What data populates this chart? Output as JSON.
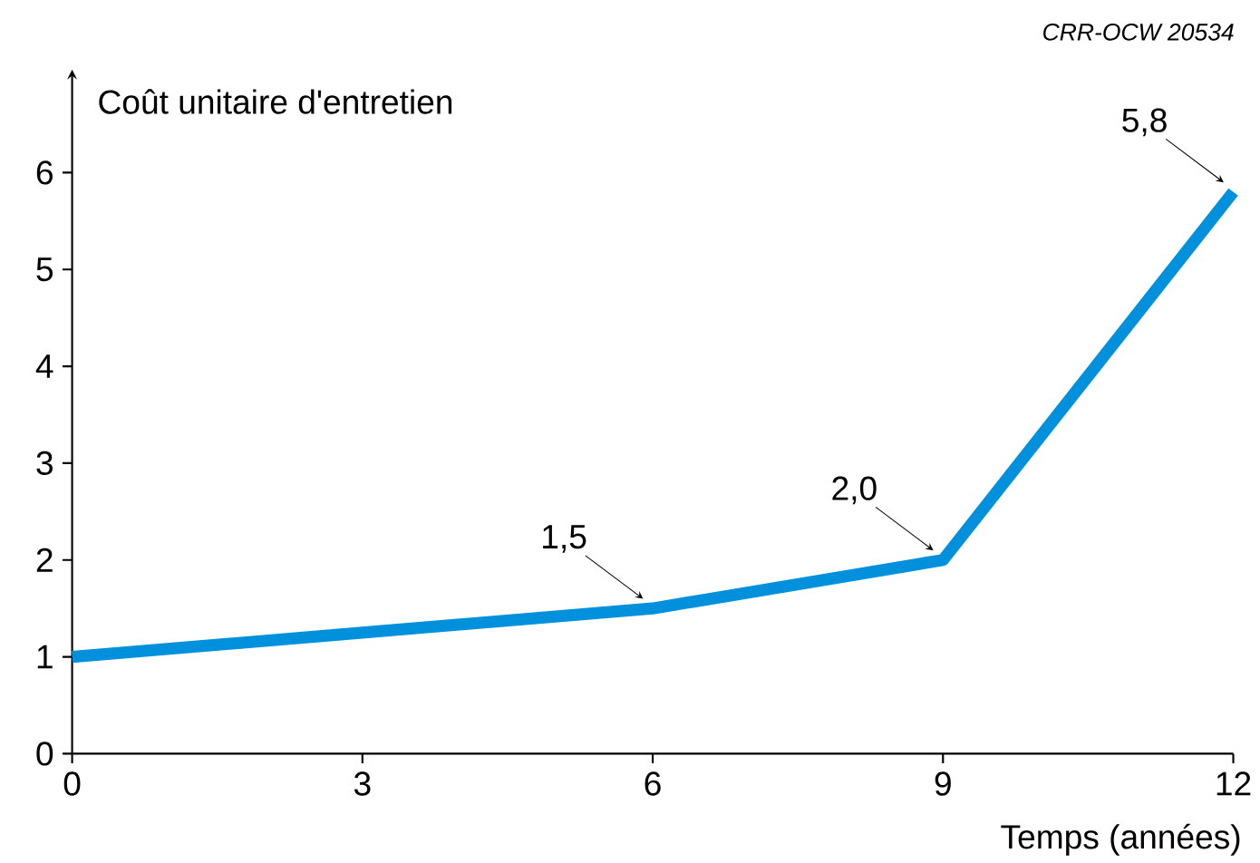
{
  "chart_data": {
    "type": "line",
    "xlabel": "Temps (années)",
    "ylabel": "Coût unitaire d'entretien",
    "x": [
      0,
      3,
      6,
      9,
      12
    ],
    "series": [
      {
        "color": "#0090dc",
        "values": [
          1,
          1.25,
          1.5,
          2.0,
          5.8
        ]
      }
    ],
    "xlim": [
      0,
      12
    ],
    "ylim": [
      0,
      7
    ],
    "xticks": [
      0,
      3,
      6,
      9,
      12
    ],
    "yticks": [
      0,
      1,
      2,
      3,
      4,
      5,
      6
    ],
    "grid": false,
    "marker": "none",
    "line_style": "solid",
    "annotations": [
      {
        "text": "1,5",
        "x": 6,
        "y": 1.5
      },
      {
        "text": "2,0",
        "x": 9,
        "y": 2.0
      },
      {
        "text": "5,8",
        "x": 12,
        "y": 5.8
      },
      "CRR-OCW 20534"
    ]
  }
}
